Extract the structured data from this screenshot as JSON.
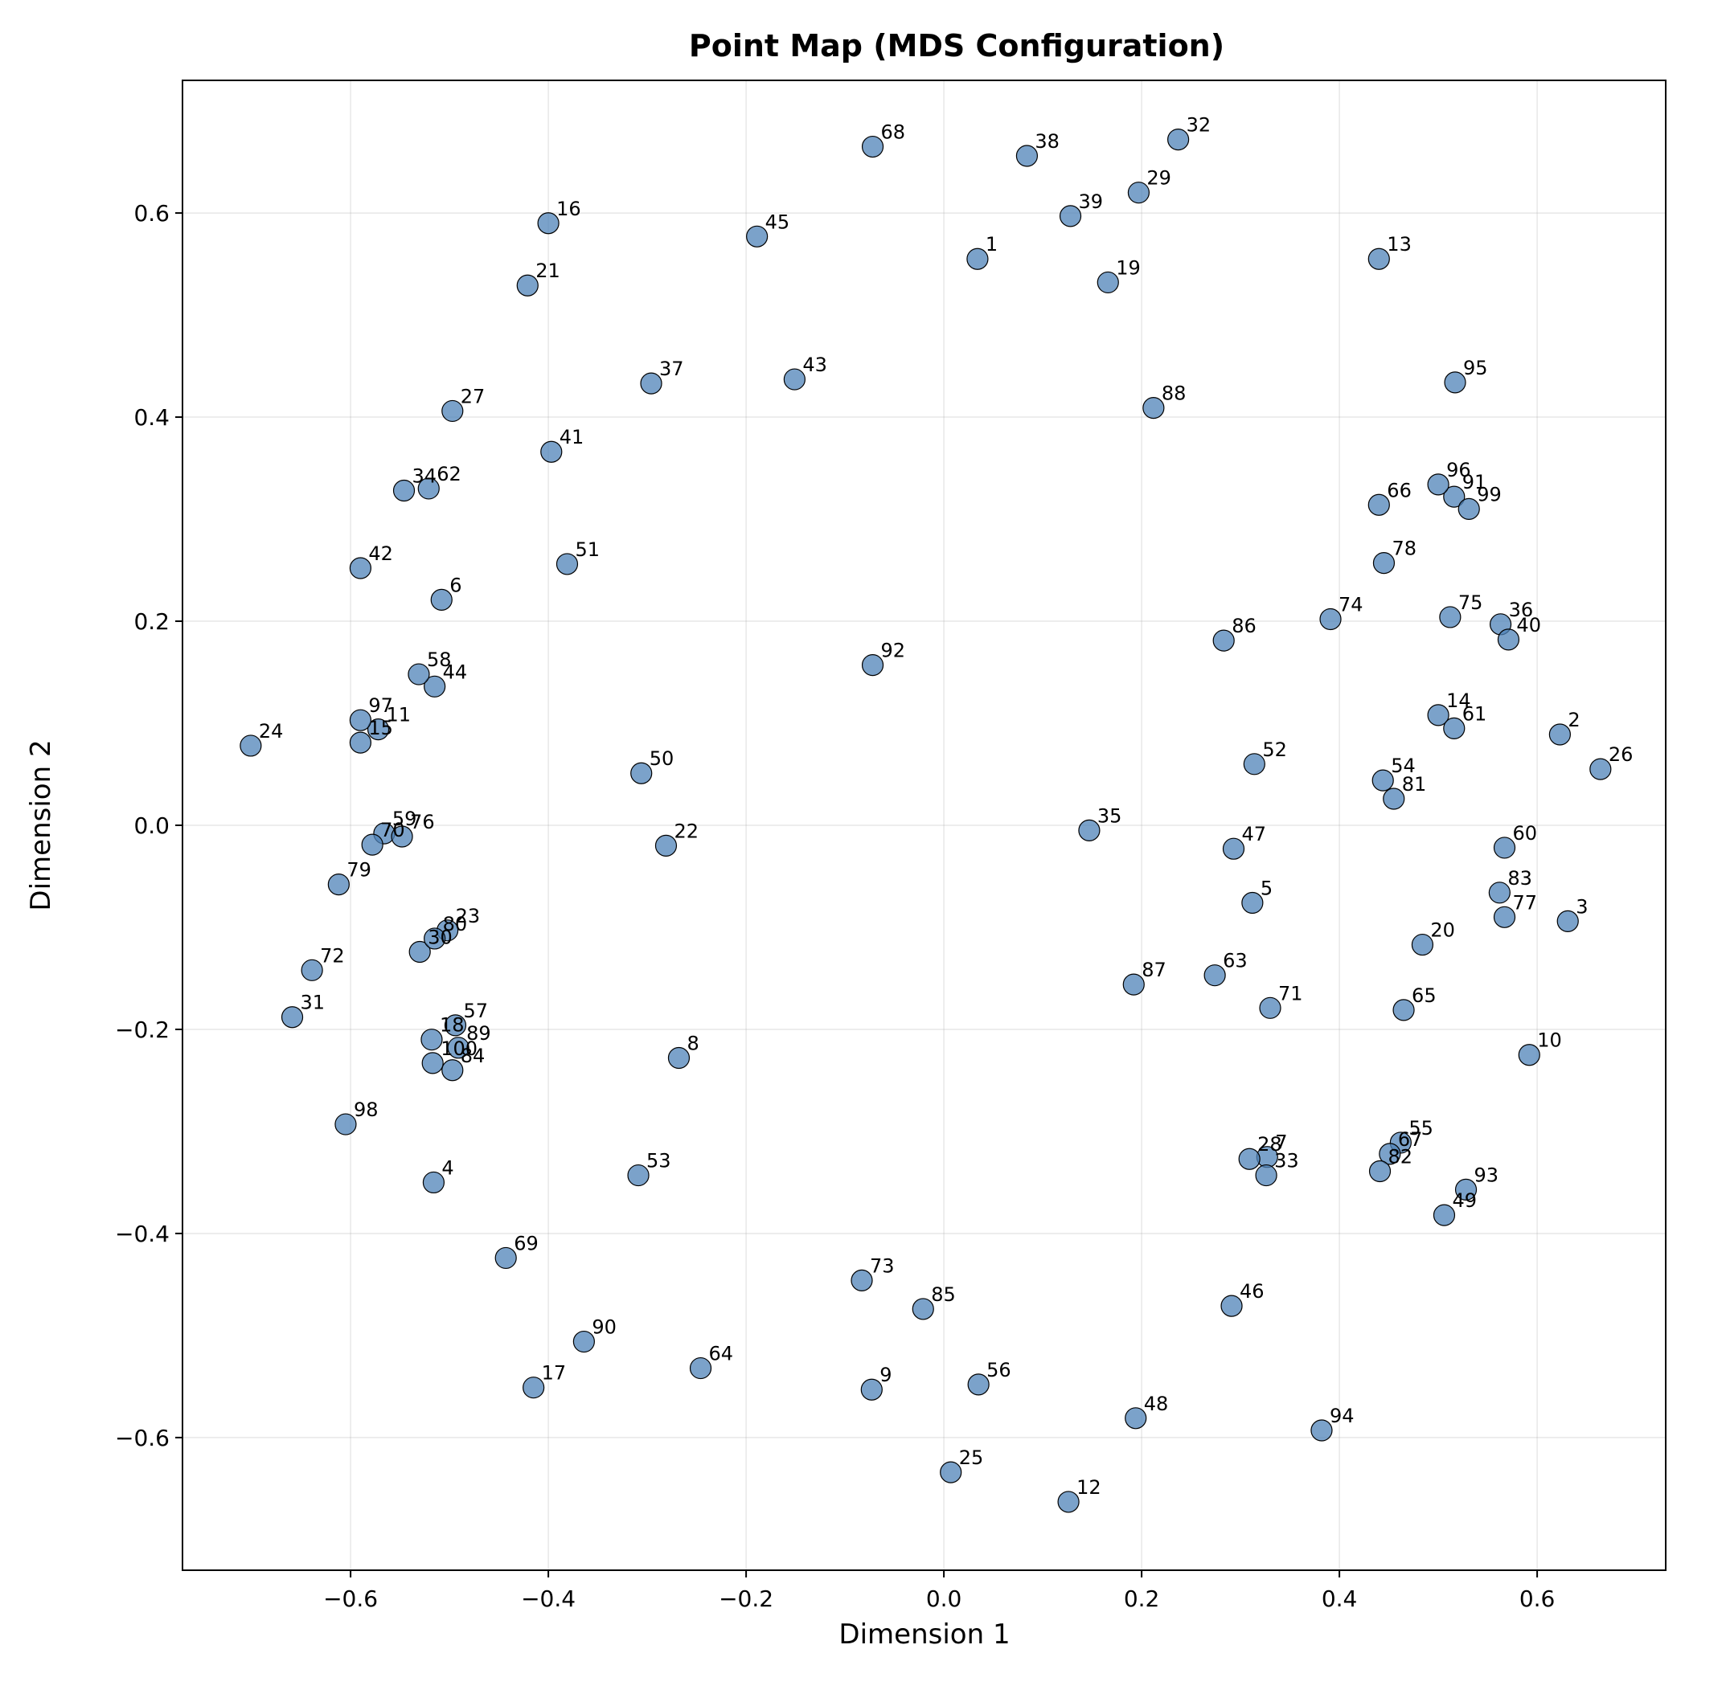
{
  "chart_data": {
    "type": "scatter",
    "title": "Point Map (MDS Configuration)",
    "xlabel": "Dimension 1",
    "ylabel": "Dimension 2",
    "xlim": [
      -0.77,
      0.73
    ],
    "ylim": [
      -0.73,
      0.73
    ],
    "xticks": [
      -0.6,
      -0.4,
      -0.2,
      0.0,
      0.2,
      0.4,
      0.6
    ],
    "yticks": [
      -0.6,
      -0.4,
      -0.2,
      0.0,
      0.2,
      0.4,
      0.6
    ],
    "xtick_labels": [
      "−0.6",
      "−0.4",
      "−0.2",
      "0.0",
      "0.2",
      "0.4",
      "0.6"
    ],
    "ytick_labels": [
      "−0.6",
      "−0.4",
      "−0.2",
      "0.0",
      "0.2",
      "0.4",
      "0.6"
    ],
    "grid": true,
    "marker_color": "#4f83b8",
    "points": [
      {
        "label": "1",
        "x": 0.034,
        "y": 0.555
      },
      {
        "label": "2",
        "x": 0.623,
        "y": 0.089
      },
      {
        "label": "3",
        "x": 0.631,
        "y": -0.094
      },
      {
        "label": "4",
        "x": -0.516,
        "y": -0.35
      },
      {
        "label": "5",
        "x": 0.312,
        "y": -0.076
      },
      {
        "label": "6",
        "x": -0.508,
        "y": 0.221
      },
      {
        "label": "7",
        "x": 0.327,
        "y": -0.325
      },
      {
        "label": "8",
        "x": -0.268,
        "y": -0.228
      },
      {
        "label": "9",
        "x": -0.073,
        "y": -0.553
      },
      {
        "label": "10",
        "x": 0.592,
        "y": -0.225
      },
      {
        "label": "11",
        "x": -0.572,
        "y": 0.094
      },
      {
        "label": "12",
        "x": 0.126,
        "y": -0.663
      },
      {
        "label": "13",
        "x": 0.44,
        "y": 0.555
      },
      {
        "label": "14",
        "x": 0.5,
        "y": 0.108
      },
      {
        "label": "15",
        "x": -0.59,
        "y": 0.081
      },
      {
        "label": "16",
        "x": -0.4,
        "y": 0.59
      },
      {
        "label": "17",
        "x": -0.415,
        "y": -0.551
      },
      {
        "label": "18",
        "x": -0.518,
        "y": -0.21
      },
      {
        "label": "19",
        "x": 0.166,
        "y": 0.532
      },
      {
        "label": "20",
        "x": 0.484,
        "y": -0.117
      },
      {
        "label": "21",
        "x": -0.421,
        "y": 0.529
      },
      {
        "label": "22",
        "x": -0.281,
        "y": -0.02
      },
      {
        "label": "23",
        "x": -0.502,
        "y": -0.103
      },
      {
        "label": "24",
        "x": -0.701,
        "y": 0.078
      },
      {
        "label": "25",
        "x": 0.007,
        "y": -0.634
      },
      {
        "label": "26",
        "x": 0.664,
        "y": 0.055
      },
      {
        "label": "27",
        "x": -0.497,
        "y": 0.406
      },
      {
        "label": "28",
        "x": 0.309,
        "y": -0.327
      },
      {
        "label": "29",
        "x": 0.197,
        "y": 0.62
      },
      {
        "label": "30",
        "x": -0.53,
        "y": -0.124
      },
      {
        "label": "31",
        "x": -0.659,
        "y": -0.188
      },
      {
        "label": "32",
        "x": 0.237,
        "y": 0.672
      },
      {
        "label": "33",
        "x": 0.326,
        "y": -0.343
      },
      {
        "label": "34",
        "x": -0.546,
        "y": 0.328
      },
      {
        "label": "35",
        "x": 0.147,
        "y": -0.005
      },
      {
        "label": "36",
        "x": 0.563,
        "y": 0.197
      },
      {
        "label": "37",
        "x": -0.296,
        "y": 0.433
      },
      {
        "label": "38",
        "x": 0.084,
        "y": 0.656
      },
      {
        "label": "39",
        "x": 0.128,
        "y": 0.597
      },
      {
        "label": "40",
        "x": 0.571,
        "y": 0.182
      },
      {
        "label": "41",
        "x": -0.397,
        "y": 0.366
      },
      {
        "label": "42",
        "x": -0.59,
        "y": 0.252
      },
      {
        "label": "43",
        "x": -0.151,
        "y": 0.437
      },
      {
        "label": "44",
        "x": -0.515,
        "y": 0.136
      },
      {
        "label": "45",
        "x": -0.189,
        "y": 0.577
      },
      {
        "label": "46",
        "x": 0.291,
        "y": -0.471
      },
      {
        "label": "47",
        "x": 0.293,
        "y": -0.023
      },
      {
        "label": "48",
        "x": 0.194,
        "y": -0.581
      },
      {
        "label": "49",
        "x": 0.506,
        "y": -0.382
      },
      {
        "label": "50",
        "x": -0.306,
        "y": 0.051
      },
      {
        "label": "51",
        "x": -0.381,
        "y": 0.256
      },
      {
        "label": "52",
        "x": 0.314,
        "y": 0.06
      },
      {
        "label": "53",
        "x": -0.309,
        "y": -0.343
      },
      {
        "label": "54",
        "x": 0.444,
        "y": 0.044
      },
      {
        "label": "55",
        "x": 0.462,
        "y": -0.311
      },
      {
        "label": "56",
        "x": 0.035,
        "y": -0.548
      },
      {
        "label": "57",
        "x": -0.494,
        "y": -0.196
      },
      {
        "label": "58",
        "x": -0.531,
        "y": 0.148
      },
      {
        "label": "59",
        "x": -0.566,
        "y": -0.008
      },
      {
        "label": "60",
        "x": 0.567,
        "y": -0.022
      },
      {
        "label": "61",
        "x": 0.516,
        "y": 0.095
      },
      {
        "label": "62",
        "x": -0.521,
        "y": 0.33
      },
      {
        "label": "63",
        "x": 0.274,
        "y": -0.147
      },
      {
        "label": "64",
        "x": -0.246,
        "y": -0.532
      },
      {
        "label": "65",
        "x": 0.465,
        "y": -0.181
      },
      {
        "label": "66",
        "x": 0.44,
        "y": 0.314
      },
      {
        "label": "67",
        "x": 0.451,
        "y": -0.322
      },
      {
        "label": "68",
        "x": -0.072,
        "y": 0.665
      },
      {
        "label": "69",
        "x": -0.443,
        "y": -0.424
      },
      {
        "label": "70",
        "x": -0.578,
        "y": -0.019
      },
      {
        "label": "71",
        "x": 0.33,
        "y": -0.179
      },
      {
        "label": "72",
        "x": -0.639,
        "y": -0.142
      },
      {
        "label": "73",
        "x": -0.083,
        "y": -0.446
      },
      {
        "label": "74",
        "x": 0.391,
        "y": 0.202
      },
      {
        "label": "75",
        "x": 0.512,
        "y": 0.204
      },
      {
        "label": "76",
        "x": -0.548,
        "y": -0.011
      },
      {
        "label": "77",
        "x": 0.567,
        "y": -0.09
      },
      {
        "label": "78",
        "x": 0.445,
        "y": 0.257
      },
      {
        "label": "79",
        "x": -0.612,
        "y": -0.058
      },
      {
        "label": "80",
        "x": -0.515,
        "y": -0.111
      },
      {
        "label": "81",
        "x": 0.455,
        "y": 0.026
      },
      {
        "label": "82",
        "x": 0.441,
        "y": -0.339
      },
      {
        "label": "83",
        "x": 0.562,
        "y": -0.066
      },
      {
        "label": "84",
        "x": -0.497,
        "y": -0.24
      },
      {
        "label": "85",
        "x": -0.021,
        "y": -0.474
      },
      {
        "label": "86",
        "x": 0.283,
        "y": 0.181
      },
      {
        "label": "87",
        "x": 0.192,
        "y": -0.156
      },
      {
        "label": "88",
        "x": 0.212,
        "y": 0.409
      },
      {
        "label": "89",
        "x": -0.491,
        "y": -0.218
      },
      {
        "label": "90",
        "x": -0.364,
        "y": -0.506
      },
      {
        "label": "91",
        "x": 0.516,
        "y": 0.322
      },
      {
        "label": "92",
        "x": -0.072,
        "y": 0.157
      },
      {
        "label": "93",
        "x": 0.528,
        "y": -0.357
      },
      {
        "label": "94",
        "x": 0.382,
        "y": -0.593
      },
      {
        "label": "95",
        "x": 0.517,
        "y": 0.434
      },
      {
        "label": "96",
        "x": 0.5,
        "y": 0.334
      },
      {
        "label": "97",
        "x": -0.59,
        "y": 0.103
      },
      {
        "label": "98",
        "x": -0.605,
        "y": -0.293
      },
      {
        "label": "99",
        "x": 0.531,
        "y": 0.31
      },
      {
        "label": "100",
        "x": -0.517,
        "y": -0.233
      }
    ]
  }
}
